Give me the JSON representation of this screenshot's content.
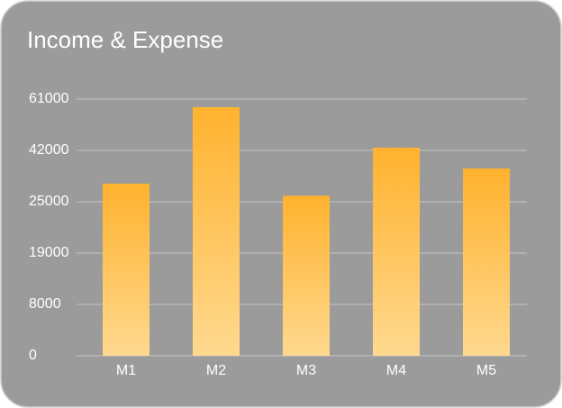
{
  "chart_data": {
    "type": "bar",
    "title": "Income & Expense",
    "categories": [
      "M1",
      "M2",
      "M3",
      "M4",
      "M5"
    ],
    "values": [
      31000,
      58000,
      27000,
      43000,
      36000
    ],
    "color": "#ffb22e",
    "ylim": [
      0,
      61000
    ],
    "yticks": [
      0,
      8000,
      19000,
      25000,
      42000,
      61000
    ],
    "grid": true
  }
}
